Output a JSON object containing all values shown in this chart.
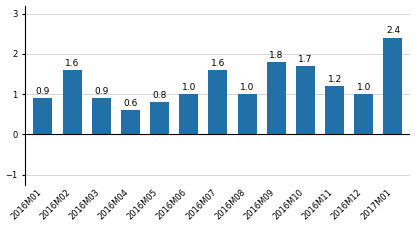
{
  "categories": [
    "2016M01",
    "2016M02",
    "2016M03",
    "2016M04",
    "2016M05",
    "2016M06",
    "2016M07",
    "2016M08",
    "2016M09",
    "2016M10",
    "2016M11",
    "2016M12",
    "2017M01"
  ],
  "values": [
    0.9,
    1.6,
    0.9,
    0.6,
    0.8,
    1.0,
    1.6,
    1.0,
    1.8,
    1.7,
    1.2,
    1.0,
    2.4
  ],
  "bar_color": "#2171a8",
  "ylim": [
    -1.25,
    3.2
  ],
  "yticks": [
    -1,
    0,
    1,
    2,
    3
  ],
  "tick_fontsize": 6.0,
  "value_fontsize": 6.5,
  "background_color": "#ffffff",
  "grid_color": "#d0d0d0"
}
